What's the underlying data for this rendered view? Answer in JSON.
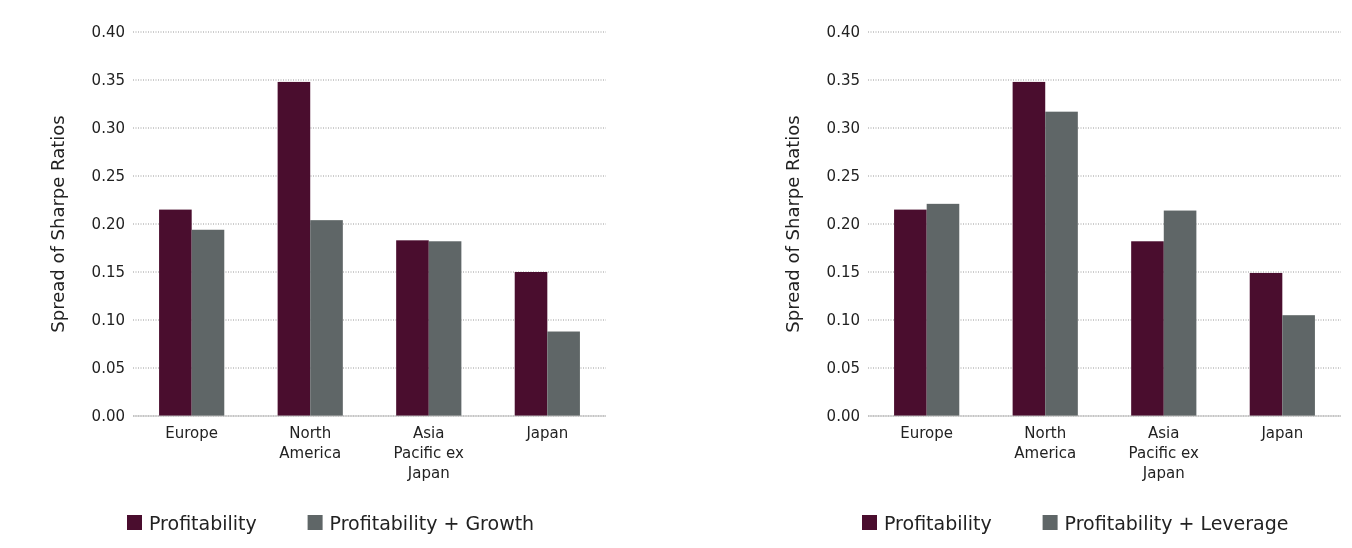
{
  "chart_data": [
    {
      "type": "bar",
      "categories": [
        "Europe",
        "North America",
        "Asia Pacific ex Japan",
        "Japan"
      ],
      "ylabel": "Spread of Sharpe Ratios",
      "ylim": [
        0,
        0.4
      ],
      "yticks": [
        {
          "value": 0,
          "label": "0.00"
        },
        {
          "value": 0.05,
          "label": "0.05"
        },
        {
          "value": 0.1,
          "label": "0.10"
        },
        {
          "value": 0.15,
          "label": "0.15"
        },
        {
          "value": 0.2,
          "label": "0.20"
        },
        {
          "value": 0.25,
          "label": "0.25"
        },
        {
          "value": 0.3,
          "label": "0.30"
        },
        {
          "value": 0.35,
          "label": "0.35"
        },
        {
          "value": 0.4,
          "label": "0.40"
        }
      ],
      "grid": "y",
      "legend": "bottom",
      "series": [
        {
          "name": "Profitability",
          "color": "#4a0d2e",
          "values": [
            0.215,
            0.348,
            0.183,
            0.15
          ]
        },
        {
          "name": "Profitability + Growth",
          "color": "#5f6667",
          "values": [
            0.194,
            0.204,
            0.182,
            0.088
          ]
        }
      ]
    },
    {
      "type": "bar",
      "categories": [
        "Europe",
        "North America",
        "Asia Pacific ex Japan",
        "Japan"
      ],
      "ylabel": "Spread of Sharpe Ratios",
      "ylim": [
        0,
        0.4
      ],
      "yticks": [
        {
          "value": 0,
          "label": "0.00"
        },
        {
          "value": 0.05,
          "label": "0.05"
        },
        {
          "value": 0.1,
          "label": "0.10"
        },
        {
          "value": 0.15,
          "label": "0.15"
        },
        {
          "value": 0.2,
          "label": "0.20"
        },
        {
          "value": 0.25,
          "label": "0.25"
        },
        {
          "value": 0.3,
          "label": "0.30"
        },
        {
          "value": 0.35,
          "label": "0.35"
        },
        {
          "value": 0.4,
          "label": "0.40"
        }
      ],
      "grid": "y",
      "legend": "bottom",
      "series": [
        {
          "name": "Profitability",
          "color": "#4a0d2e",
          "values": [
            0.215,
            0.348,
            0.182,
            0.149
          ]
        },
        {
          "name": "Profitability + Leverage",
          "color": "#5f6667",
          "values": [
            0.221,
            0.317,
            0.214,
            0.105
          ]
        }
      ]
    }
  ]
}
